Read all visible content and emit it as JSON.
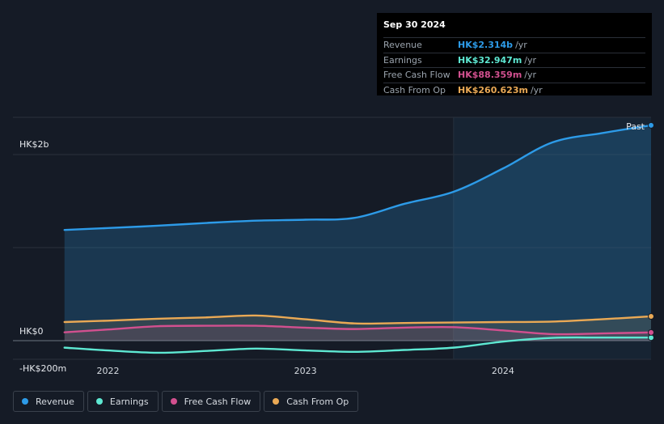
{
  "tooltip": {
    "date": "Sep 30 2024",
    "rows": [
      {
        "label": "Revenue",
        "value": "HK$2.314b",
        "unit": "/yr",
        "color": "#2d9be8"
      },
      {
        "label": "Earnings",
        "value": "HK$32.947m",
        "unit": "/yr",
        "color": "#5ee8d2"
      },
      {
        "label": "Free Cash Flow",
        "value": "HK$88.359m",
        "unit": "/yr",
        "color": "#d2508f"
      },
      {
        "label": "Cash From Op",
        "value": "HK$260.623m",
        "unit": "/yr",
        "color": "#eaa955"
      }
    ]
  },
  "past_label": "Past",
  "legend": [
    {
      "label": "Revenue",
      "color": "#2d9be8"
    },
    {
      "label": "Earnings",
      "color": "#5ee8d2"
    },
    {
      "label": "Free Cash Flow",
      "color": "#d2508f"
    },
    {
      "label": "Cash From Op",
      "color": "#eaa955"
    }
  ],
  "chart_data": {
    "type": "line",
    "currency": "HK$",
    "y_tick_labels": [
      {
        "value": 2000,
        "label": "HK$2b"
      },
      {
        "value": 0,
        "label": "HK$0"
      },
      {
        "value": -200,
        "label": "-HK$200m"
      }
    ],
    "ylim": [
      -200,
      2400
    ],
    "xlim": [
      2021.65,
      2024.75
    ],
    "x_ticks": [
      {
        "value": 2022.0,
        "label": "2022"
      },
      {
        "value": 2023.0,
        "label": "2023"
      },
      {
        "value": 2024.0,
        "label": "2024"
      }
    ],
    "past_region_start": 2023.75,
    "series": [
      {
        "name": "Revenue",
        "color": "#2d9be8",
        "fill": true,
        "points": [
          [
            2021.78,
            1190
          ],
          [
            2022.0,
            1210
          ],
          [
            2022.25,
            1235
          ],
          [
            2022.5,
            1265
          ],
          [
            2022.75,
            1290
          ],
          [
            2023.0,
            1300
          ],
          [
            2023.25,
            1320
          ],
          [
            2023.5,
            1470
          ],
          [
            2023.75,
            1600
          ],
          [
            2024.0,
            1850
          ],
          [
            2024.25,
            2130
          ],
          [
            2024.5,
            2230
          ],
          [
            2024.75,
            2314
          ]
        ]
      },
      {
        "name": "Earnings",
        "color": "#5ee8d2",
        "fill": false,
        "points": [
          [
            2021.78,
            -75
          ],
          [
            2022.0,
            -105
          ],
          [
            2022.25,
            -130
          ],
          [
            2022.5,
            -110
          ],
          [
            2022.75,
            -85
          ],
          [
            2023.0,
            -105
          ],
          [
            2023.25,
            -120
          ],
          [
            2023.5,
            -100
          ],
          [
            2023.75,
            -75
          ],
          [
            2024.0,
            -10
          ],
          [
            2024.25,
            30
          ],
          [
            2024.5,
            33
          ],
          [
            2024.75,
            33
          ]
        ]
      },
      {
        "name": "Free Cash Flow",
        "color": "#d2508f",
        "fill": true,
        "points": [
          [
            2021.78,
            90
          ],
          [
            2022.0,
            120
          ],
          [
            2022.25,
            155
          ],
          [
            2022.5,
            160
          ],
          [
            2022.75,
            160
          ],
          [
            2023.0,
            140
          ],
          [
            2023.25,
            125
          ],
          [
            2023.5,
            140
          ],
          [
            2023.75,
            145
          ],
          [
            2024.0,
            110
          ],
          [
            2024.25,
            70
          ],
          [
            2024.5,
            78
          ],
          [
            2024.75,
            88
          ]
        ]
      },
      {
        "name": "Cash From Op",
        "color": "#eaa955",
        "fill": true,
        "points": [
          [
            2021.78,
            200
          ],
          [
            2022.0,
            215
          ],
          [
            2022.25,
            235
          ],
          [
            2022.5,
            250
          ],
          [
            2022.75,
            270
          ],
          [
            2023.0,
            230
          ],
          [
            2023.25,
            185
          ],
          [
            2023.5,
            190
          ],
          [
            2023.75,
            195
          ],
          [
            2024.0,
            200
          ],
          [
            2024.25,
            205
          ],
          [
            2024.5,
            230
          ],
          [
            2024.75,
            261
          ]
        ]
      }
    ]
  }
}
